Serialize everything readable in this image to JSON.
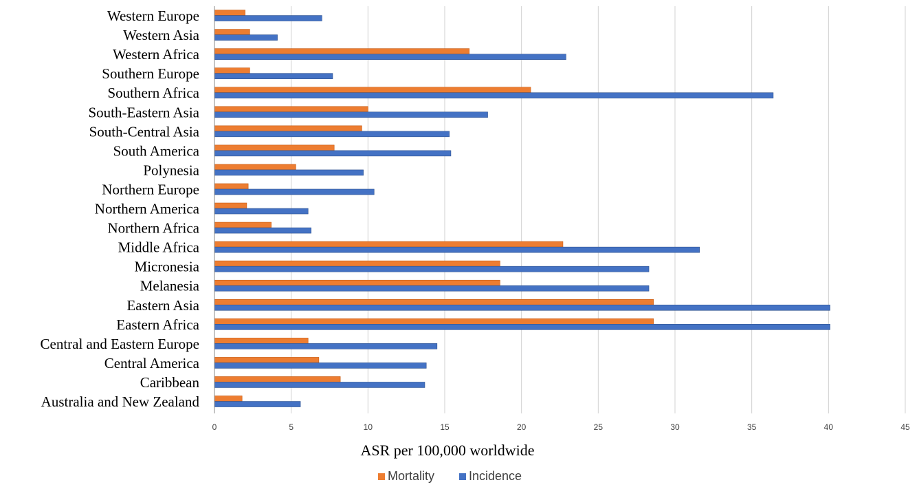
{
  "chart_data": {
    "type": "bar",
    "orientation": "horizontal",
    "title": "",
    "xlabel": "ASR  per 100,000 worldwide",
    "ylabel": "",
    "xlim": [
      0,
      45
    ],
    "xticks": [
      0,
      5,
      10,
      15,
      20,
      25,
      30,
      35,
      40,
      45
    ],
    "grid": true,
    "legend_position": "bottom",
    "categories": [
      "Western Europe",
      "Western Asia",
      "Western Africa",
      "Southern Europe",
      "Southern Africa",
      "South-Eastern Asia",
      "South-Central Asia",
      "South America",
      "Polynesia",
      "Northern Europe",
      "Northern America",
      "Northern Africa",
      "Middle Africa",
      "Micronesia",
      "Melanesia",
      "Eastern Asia",
      "Eastern Africa",
      "Central and Eastern Europe",
      "Central America",
      "Caribbean",
      "Australia and New Zealand"
    ],
    "series": [
      {
        "name": "Mortality",
        "color": "#ED7D31",
        "values": [
          2.0,
          2.3,
          16.6,
          2.3,
          20.6,
          10.0,
          9.6,
          7.8,
          5.3,
          2.2,
          2.1,
          3.7,
          22.7,
          18.6,
          18.6,
          28.6,
          28.6,
          6.1,
          6.8,
          8.2,
          1.8
        ]
      },
      {
        "name": "Incidence",
        "color": "#4472C4",
        "values": [
          7.0,
          4.1,
          22.9,
          7.7,
          36.4,
          17.8,
          15.3,
          15.4,
          9.7,
          10.4,
          6.1,
          6.3,
          31.6,
          28.3,
          28.3,
          40.1,
          40.1,
          14.5,
          13.8,
          13.7,
          5.6
        ]
      }
    ]
  }
}
